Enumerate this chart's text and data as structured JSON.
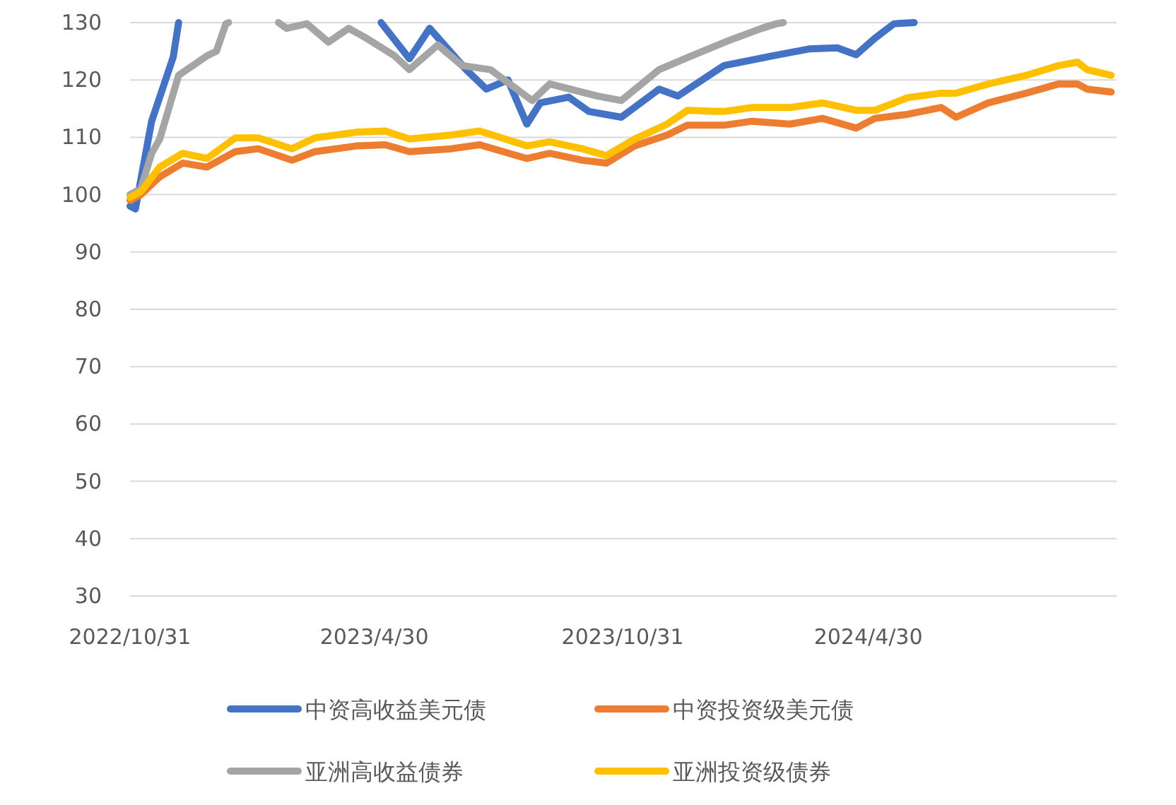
{
  "chart_data": {
    "type": "line",
    "xlim": [
      "2022-10-31",
      "2024-10-31"
    ],
    "ylim": [
      30,
      130
    ],
    "yticks": [
      30,
      40,
      50,
      60,
      70,
      80,
      90,
      100,
      110,
      120,
      130
    ],
    "xticks": [
      {
        "value": "2022-10-31",
        "label": "2022/10/31"
      },
      {
        "value": "2023-04-30",
        "label": "2023/4/30"
      },
      {
        "value": "2023-10-31",
        "label": "2023/10/31"
      },
      {
        "value": "2024-04-30",
        "label": "2024/4/30"
      }
    ],
    "grid": "y",
    "legend": "bottom",
    "series": [
      {
        "name": "中资高收益美元债",
        "color": "#4472c4",
        "x": [
          "2022-10-31",
          "2022-11-04",
          "2022-11-16",
          "2022-12-02",
          "2022-12-06",
          null,
          "2023-05-05",
          "2023-05-26",
          "2023-06-10",
          "2023-07-07",
          "2023-07-22",
          "2023-08-07",
          "2023-08-21",
          "2023-08-31",
          "2023-09-21",
          "2023-10-06",
          "2023-10-30",
          "2023-11-27",
          "2023-12-11",
          "2024-01-14",
          "2024-02-19",
          "2024-03-17",
          "2024-04-07",
          "2024-04-21",
          "2024-05-05",
          "2024-05-19",
          "2024-06-03"
        ],
        "values": [
          98,
          97.5,
          112.8,
          124,
          130,
          null,
          130,
          123.7,
          129,
          121.8,
          118.4,
          120,
          112.3,
          116,
          117,
          114.5,
          113.5,
          118.4,
          117.2,
          122.5,
          124.2,
          125.4,
          125.6,
          124.4,
          127.3,
          129.8,
          130
        ]
      },
      {
        "name": "中资投资级美元债",
        "color": "#ed7d31",
        "x": [
          "2022-10-31",
          "2022-11-08",
          "2022-11-22",
          "2022-12-09",
          "2022-12-27",
          "2023-01-17",
          "2023-02-03",
          "2023-02-28",
          "2023-03-17",
          "2023-04-17",
          "2023-05-08",
          "2023-05-26",
          "2023-06-26",
          "2023-07-17",
          "2023-08-21",
          "2023-09-07",
          "2023-10-01",
          "2023-10-19",
          "2023-11-09",
          "2023-12-03",
          "2023-12-18",
          "2024-01-14",
          "2024-02-04",
          "2024-03-03",
          "2024-03-27",
          "2024-04-21",
          "2024-05-05",
          "2024-05-29",
          "2024-06-23",
          "2024-07-04",
          "2024-07-28",
          "2024-08-25",
          "2024-09-18",
          "2024-10-02",
          "2024-10-09",
          "2024-10-27"
        ],
        "values": [
          99,
          100,
          103.1,
          105.5,
          104.8,
          107.5,
          108,
          106,
          107.5,
          108.5,
          108.7,
          107.5,
          108,
          108.7,
          106.3,
          107.2,
          106,
          105.5,
          108.5,
          110.4,
          112.1,
          112.1,
          112.8,
          112.3,
          113.3,
          111.6,
          113.3,
          114,
          115.2,
          113.5,
          116,
          117.7,
          119.3,
          119.3,
          118.4,
          117.9
        ]
      },
      {
        "name": "亚洲高收益债券",
        "color": "#a5a5a5",
        "x": [
          "2022-10-31",
          "2022-11-08",
          "2022-11-16",
          "2022-11-22",
          "2022-12-06",
          "2022-12-27",
          "2023-01-03",
          "2023-01-10",
          "2023-01-12",
          null,
          "2023-02-18",
          "2023-02-24",
          "2023-03-11",
          "2023-03-27",
          "2023-04-11",
          "2023-04-24",
          "2023-05-15",
          "2023-05-26",
          "2023-06-16",
          "2023-07-04",
          "2023-07-25",
          "2023-08-25",
          "2023-09-07",
          "2023-10-12",
          "2023-10-30",
          "2023-11-27",
          "2023-12-21",
          "2024-01-18",
          "2024-02-11",
          "2024-02-22",
          "2024-02-27"
        ],
        "values": [
          100,
          101,
          107.2,
          109.7,
          120.8,
          124.2,
          125,
          129.8,
          130,
          null,
          130,
          129,
          129.8,
          126.6,
          129,
          127.3,
          124.2,
          121.8,
          126.1,
          122.5,
          121.8,
          116.4,
          119.3,
          117.2,
          116.4,
          121.8,
          124.2,
          126.9,
          129,
          129.8,
          130
        ]
      },
      {
        "name": "亚洲投资级债券",
        "color": "#ffc000",
        "x": [
          "2022-10-31",
          "2022-11-08",
          "2022-11-22",
          "2022-12-09",
          "2022-12-27",
          "2023-01-17",
          "2023-02-03",
          "2023-02-28",
          "2023-03-17",
          "2023-04-17",
          "2023-05-08",
          "2023-05-26",
          "2023-06-26",
          "2023-07-17",
          "2023-08-21",
          "2023-09-07",
          "2023-10-01",
          "2023-10-19",
          "2023-11-09",
          "2023-12-03",
          "2023-12-18",
          "2024-01-14",
          "2024-02-04",
          "2024-03-03",
          "2024-03-27",
          "2024-04-21",
          "2024-05-05",
          "2024-05-29",
          "2024-06-23",
          "2024-07-04",
          "2024-07-28",
          "2024-08-25",
          "2024-09-18",
          "2024-10-02",
          "2024-10-09",
          "2024-10-27"
        ],
        "values": [
          99.5,
          100.5,
          104.8,
          107.2,
          106.3,
          109.9,
          109.9,
          108,
          109.9,
          110.9,
          111.1,
          109.7,
          110.4,
          111.1,
          108.5,
          109.2,
          108,
          106.8,
          109.7,
          112.3,
          114.7,
          114.5,
          115.2,
          115.2,
          116,
          114.7,
          114.7,
          116.9,
          117.7,
          117.7,
          119.3,
          120.8,
          122.5,
          123.1,
          121.8,
          120.8
        ]
      }
    ]
  }
}
